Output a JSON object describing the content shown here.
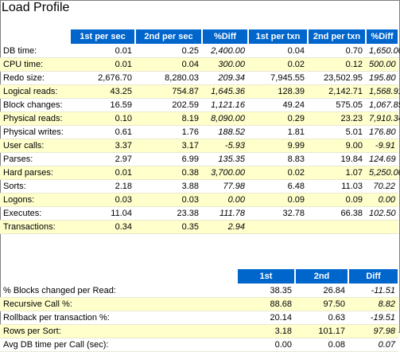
{
  "title": "Load Profile",
  "profile": {
    "headers": [
      "1st per sec",
      "2nd per sec",
      "%Diff",
      "1st per txn",
      "2nd per txn",
      "%Diff"
    ],
    "rows": [
      {
        "label": "DB time:",
        "v": [
          "0.01",
          "0.25",
          "2,400.00",
          "0.04",
          "0.70",
          "1,650.00"
        ]
      },
      {
        "label": "CPU time:",
        "v": [
          "0.01",
          "0.04",
          "300.00",
          "0.02",
          "0.12",
          "500.00"
        ]
      },
      {
        "label": "Redo size:",
        "v": [
          "2,676.70",
          "8,280.03",
          "209.34",
          "7,945.55",
          "23,502.95",
          "195.80"
        ]
      },
      {
        "label": "Logical reads:",
        "v": [
          "43.25",
          "754.87",
          "1,645.36",
          "128.39",
          "2,142.71",
          "1,568.91"
        ]
      },
      {
        "label": "Block changes:",
        "v": [
          "16.59",
          "202.59",
          "1,121.16",
          "49.24",
          "575.05",
          "1,067.85"
        ]
      },
      {
        "label": "Physical reads:",
        "v": [
          "0.10",
          "8.19",
          "8,090.00",
          "0.29",
          "23.23",
          "7,910.34"
        ]
      },
      {
        "label": "Physical writes:",
        "v": [
          "0.61",
          "1.76",
          "188.52",
          "1.81",
          "5.01",
          "176.80"
        ]
      },
      {
        "label": "User calls:",
        "v": [
          "3.37",
          "3.17",
          "-5.93",
          "9.99",
          "9.00",
          "-9.91"
        ]
      },
      {
        "label": "Parses:",
        "v": [
          "2.97",
          "6.99",
          "135.35",
          "8.83",
          "19.84",
          "124.69"
        ]
      },
      {
        "label": "Hard parses:",
        "v": [
          "0.01",
          "0.38",
          "3,700.00",
          "0.02",
          "1.07",
          "5,250.00"
        ]
      },
      {
        "label": "Sorts:",
        "v": [
          "2.18",
          "3.88",
          "77.98",
          "6.48",
          "11.03",
          "70.22"
        ]
      },
      {
        "label": "Logons:",
        "v": [
          "0.03",
          "0.03",
          "0.00",
          "0.09",
          "0.09",
          "0.00"
        ]
      },
      {
        "label": "Executes:",
        "v": [
          "11.04",
          "23.38",
          "111.78",
          "32.78",
          "66.38",
          "102.50"
        ]
      },
      {
        "label": "Transactions:",
        "v": [
          "0.34",
          "0.35",
          "2.94",
          "",
          "",
          ""
        ]
      }
    ]
  },
  "ratios": {
    "headers": [
      "1st",
      "2nd",
      "Diff"
    ],
    "rows": [
      {
        "label": "% Blocks changed per Read:",
        "v": [
          "38.35",
          "26.84",
          "-11.51"
        ]
      },
      {
        "label": "Recursive Call %:",
        "v": [
          "88.68",
          "97.50",
          "8.82"
        ]
      },
      {
        "label": "Rollback per transaction %:",
        "v": [
          "20.14",
          "0.63",
          "-19.51"
        ]
      },
      {
        "label": "Rows per Sort:",
        "v": [
          "3.18",
          "101.17",
          "97.98"
        ]
      },
      {
        "label": "Avg DB time per Call (sec):",
        "v": [
          "0.00",
          "0.08",
          "0.07"
        ]
      }
    ]
  },
  "colors": {
    "header_bg": "#0066cc",
    "row_alt_bg": "#ffffcc"
  }
}
